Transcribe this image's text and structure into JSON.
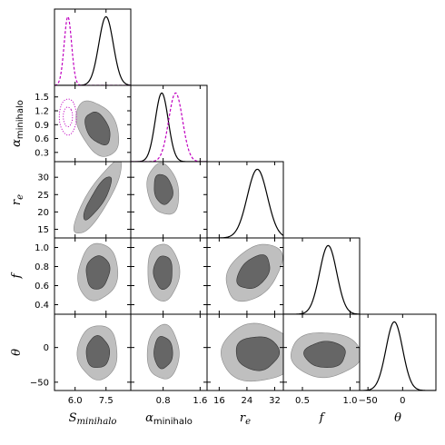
{
  "chart_data": {
    "type": "corner",
    "parameters": [
      {
        "key": "S",
        "label_main": "S",
        "label_sub": "minihalo",
        "ticks": [
          6.0,
          7.5
        ],
        "tick_labels": [
          "6.0",
          "7.5"
        ],
        "range": [
          5.0,
          8.7
        ]
      },
      {
        "key": "alpha",
        "label_main": "α",
        "label_sub": "minihalo",
        "ticks": [
          0.3,
          0.6,
          0.9,
          1.2,
          1.5
        ],
        "tick_labels": [
          "0.3",
          "0.6",
          "0.9",
          "1.2",
          "1.5"
        ],
        "x_ticks": [
          0.8,
          1.6
        ],
        "x_tick_labels": [
          "0.8",
          "1.6"
        ],
        "range": [
          0.1,
          1.75
        ]
      },
      {
        "key": "re",
        "label_main": "r",
        "label_sub": "e",
        "ticks": [
          16,
          24,
          32
        ],
        "tick_labels": [
          "16",
          "24",
          "32"
        ],
        "y_ticks": [
          15,
          20,
          25,
          30
        ],
        "y_tick_labels": [
          "15",
          "20",
          "25",
          "30"
        ],
        "range": [
          12.5,
          34.5
        ]
      },
      {
        "key": "f",
        "label_main": "f",
        "label_sub": "",
        "ticks": [
          0.5,
          1.0
        ],
        "tick_labels": [
          "0.5",
          "1.0"
        ],
        "y_ticks": [
          0.4,
          0.6,
          0.8,
          1.0
        ],
        "y_tick_labels": [
          "0.4",
          "0.6",
          "0.8",
          "1.0"
        ],
        "range": [
          0.3,
          1.1
        ]
      },
      {
        "key": "theta",
        "label_main": "θ",
        "label_sub": "",
        "ticks": [
          -50,
          0
        ],
        "tick_labels": [
          "−50",
          "0"
        ],
        "y_ticks": [
          0,
          -50
        ],
        "y_tick_labels": [
          "0",
          "−50"
        ],
        "range": [
          -62,
          48
        ]
      }
    ],
    "marginals": [
      {
        "param": "S",
        "series": [
          {
            "color": "#000000",
            "style": "solid",
            "mean": 7.5,
            "sd": 0.35
          },
          {
            "color": "#c000c0",
            "style": "dashed",
            "mean": 5.65,
            "sd": 0.18
          }
        ]
      },
      {
        "param": "alpha",
        "series": [
          {
            "color": "#000000",
            "style": "solid",
            "mean": 0.77,
            "sd": 0.14
          },
          {
            "color": "#c000c0",
            "style": "dashed",
            "mean": 1.07,
            "sd": 0.15
          }
        ]
      },
      {
        "param": "re",
        "series": [
          {
            "color": "#000000",
            "style": "solid",
            "mean": 27.0,
            "sd": 2.9
          }
        ]
      },
      {
        "param": "f",
        "series": [
          {
            "color": "#000000",
            "style": "solid",
            "mean": 0.77,
            "sd": 0.09
          }
        ]
      },
      {
        "param": "theta",
        "series": [
          {
            "color": "#000000",
            "style": "solid",
            "mean": -12,
            "sd": 12
          }
        ]
      }
    ],
    "contours": [
      {
        "x": "S",
        "y": "alpha",
        "mean": [
          7.1,
          0.82
        ],
        "sd": [
          0.45,
          0.26
        ],
        "rho": -0.4
      },
      {
        "x": "S",
        "y": "re",
        "mean": [
          7.1,
          24.0
        ],
        "sd": [
          0.5,
          4.6
        ],
        "rho": 0.85
      },
      {
        "x": "alpha",
        "y": "re",
        "mean": [
          0.8,
          26.5
        ],
        "sd": [
          0.15,
          3.2
        ],
        "rho": -0.2
      },
      {
        "x": "S",
        "y": "f",
        "mean": [
          7.1,
          0.74
        ],
        "sd": [
          0.42,
          0.13
        ],
        "rho": 0.1
      },
      {
        "x": "alpha",
        "y": "f",
        "mean": [
          0.8,
          0.74
        ],
        "sd": [
          0.15,
          0.13
        ],
        "rho": 0.0
      },
      {
        "x": "re",
        "y": "f",
        "mean": [
          26.0,
          0.74
        ],
        "sd": [
          3.5,
          0.13
        ],
        "rho": 0.4
      },
      {
        "x": "S",
        "y": "theta",
        "mean": [
          7.1,
          -7
        ],
        "sd": [
          0.42,
          17
        ],
        "rho": 0.0
      },
      {
        "x": "alpha",
        "y": "theta",
        "mean": [
          0.8,
          -7
        ],
        "sd": [
          0.15,
          17
        ],
        "rho": 0.0
      },
      {
        "x": "re",
        "y": "theta",
        "mean": [
          27.0,
          -8
        ],
        "sd": [
          4.6,
          18
        ],
        "rho": 0.0
      },
      {
        "x": "f",
        "y": "theta",
        "mean": [
          0.74,
          -10
        ],
        "sd": [
          0.16,
          14
        ],
        "rho": 0.0
      }
    ],
    "prior_contours": [
      {
        "x": "S",
        "y": "alpha",
        "mean": [
          5.65,
          1.07
        ],
        "sd": [
          0.18,
          0.17
        ],
        "rho": 0.0,
        "color": "#c000c0",
        "style": "dotted"
      }
    ],
    "contour_levels": [
      {
        "level": "inner",
        "color": "#666666"
      },
      {
        "level": "outer",
        "color": "#bfbfbf"
      }
    ]
  }
}
